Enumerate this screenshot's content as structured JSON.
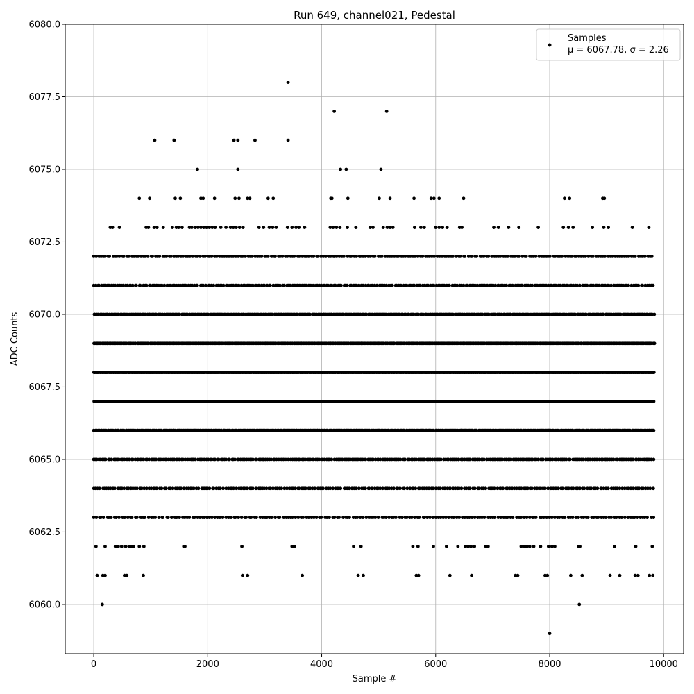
{
  "chart_data": {
    "type": "scatter",
    "title": "Run 649, channel021, Pedestal",
    "xlabel": "Sample #",
    "ylabel": "ADC Counts",
    "xlim": [
      -500,
      10350
    ],
    "ylim": [
      6058.3,
      6080
    ],
    "xticks": [
      0,
      2000,
      4000,
      6000,
      8000,
      10000
    ],
    "xtick_labels": [
      "0",
      "2000",
      "4000",
      "6000",
      "8000",
      "10000"
    ],
    "yticks": [
      6060.0,
      6062.5,
      6065.0,
      6067.5,
      6070.0,
      6072.5,
      6075.0,
      6077.5,
      6080.0
    ],
    "ytick_labels": [
      "6060.0",
      "6062.5",
      "6065.0",
      "6067.5",
      "6070.0",
      "6072.5",
      "6075.0",
      "6077.5",
      "6080.0"
    ],
    "grid": true,
    "legend_position": "top-right",
    "marker_color": "#000000",
    "series": [
      {
        "name": "Samples",
        "stats_label": "μ = 6067.78, σ = 2.26",
        "mean": 6067.78,
        "std": 2.26,
        "x_range": [
          0,
          9840
        ],
        "dense_levels": [
          6063,
          6064,
          6065,
          6066,
          6067,
          6068,
          6069,
          6070,
          6071,
          6072
        ],
        "sparse_points": [
          {
            "x": 8000,
            "y": 6059
          },
          {
            "x": 150,
            "y": 6060
          },
          {
            "x": 8520,
            "y": 6060
          },
          {
            "x": 60,
            "y": 6061
          },
          {
            "x": 160,
            "y": 6061
          },
          {
            "x": 200,
            "y": 6061
          },
          {
            "x": 540,
            "y": 6061
          },
          {
            "x": 580,
            "y": 6061
          },
          {
            "x": 870,
            "y": 6061
          },
          {
            "x": 2610,
            "y": 6061
          },
          {
            "x": 2700,
            "y": 6061
          },
          {
            "x": 3660,
            "y": 6061
          },
          {
            "x": 4640,
            "y": 6061
          },
          {
            "x": 4730,
            "y": 6061
          },
          {
            "x": 5660,
            "y": 6061
          },
          {
            "x": 5700,
            "y": 6061
          },
          {
            "x": 6250,
            "y": 6061
          },
          {
            "x": 6630,
            "y": 6061
          },
          {
            "x": 7400,
            "y": 6061
          },
          {
            "x": 7440,
            "y": 6061
          },
          {
            "x": 7920,
            "y": 6061
          },
          {
            "x": 7960,
            "y": 6061
          },
          {
            "x": 8370,
            "y": 6061
          },
          {
            "x": 8570,
            "y": 6061
          },
          {
            "x": 9060,
            "y": 6061
          },
          {
            "x": 9230,
            "y": 6061
          },
          {
            "x": 9500,
            "y": 6061
          },
          {
            "x": 9550,
            "y": 6061
          },
          {
            "x": 9750,
            "y": 6061
          },
          {
            "x": 9810,
            "y": 6061
          },
          {
            "x": 40,
            "y": 6062
          },
          {
            "x": 200,
            "y": 6062
          },
          {
            "x": 380,
            "y": 6062
          },
          {
            "x": 430,
            "y": 6062
          },
          {
            "x": 490,
            "y": 6062
          },
          {
            "x": 560,
            "y": 6062
          },
          {
            "x": 620,
            "y": 6062
          },
          {
            "x": 660,
            "y": 6062
          },
          {
            "x": 700,
            "y": 6062
          },
          {
            "x": 800,
            "y": 6062
          },
          {
            "x": 880,
            "y": 6062
          },
          {
            "x": 1580,
            "y": 6062
          },
          {
            "x": 1600,
            "y": 6062
          },
          {
            "x": 2600,
            "y": 6062
          },
          {
            "x": 3480,
            "y": 6062
          },
          {
            "x": 3520,
            "y": 6062
          },
          {
            "x": 4560,
            "y": 6062
          },
          {
            "x": 4690,
            "y": 6062
          },
          {
            "x": 5600,
            "y": 6062
          },
          {
            "x": 5690,
            "y": 6062
          },
          {
            "x": 5960,
            "y": 6062
          },
          {
            "x": 6190,
            "y": 6062
          },
          {
            "x": 6390,
            "y": 6062
          },
          {
            "x": 6520,
            "y": 6062
          },
          {
            "x": 6570,
            "y": 6062
          },
          {
            "x": 6620,
            "y": 6062
          },
          {
            "x": 6680,
            "y": 6062
          },
          {
            "x": 6880,
            "y": 6062
          },
          {
            "x": 6920,
            "y": 6062
          },
          {
            "x": 7500,
            "y": 6062
          },
          {
            "x": 7560,
            "y": 6062
          },
          {
            "x": 7600,
            "y": 6062
          },
          {
            "x": 7650,
            "y": 6062
          },
          {
            "x": 7720,
            "y": 6062
          },
          {
            "x": 7840,
            "y": 6062
          },
          {
            "x": 7980,
            "y": 6062
          },
          {
            "x": 8040,
            "y": 6062
          },
          {
            "x": 8090,
            "y": 6062
          },
          {
            "x": 8510,
            "y": 6062
          },
          {
            "x": 8530,
            "y": 6062
          },
          {
            "x": 9140,
            "y": 6062
          },
          {
            "x": 9510,
            "y": 6062
          },
          {
            "x": 9800,
            "y": 6062
          },
          {
            "x": 290,
            "y": 6073
          },
          {
            "x": 330,
            "y": 6073
          },
          {
            "x": 450,
            "y": 6073
          },
          {
            "x": 920,
            "y": 6073
          },
          {
            "x": 960,
            "y": 6073
          },
          {
            "x": 1060,
            "y": 6073
          },
          {
            "x": 1110,
            "y": 6073
          },
          {
            "x": 1220,
            "y": 6073
          },
          {
            "x": 1380,
            "y": 6073
          },
          {
            "x": 1450,
            "y": 6073
          },
          {
            "x": 1490,
            "y": 6073
          },
          {
            "x": 1550,
            "y": 6073
          },
          {
            "x": 1680,
            "y": 6073
          },
          {
            "x": 1720,
            "y": 6073
          },
          {
            "x": 1780,
            "y": 6073
          },
          {
            "x": 1830,
            "y": 6073
          },
          {
            "x": 1880,
            "y": 6073
          },
          {
            "x": 1930,
            "y": 6073
          },
          {
            "x": 1980,
            "y": 6073
          },
          {
            "x": 2030,
            "y": 6073
          },
          {
            "x": 2080,
            "y": 6073
          },
          {
            "x": 2130,
            "y": 6073
          },
          {
            "x": 2230,
            "y": 6073
          },
          {
            "x": 2320,
            "y": 6073
          },
          {
            "x": 2400,
            "y": 6073
          },
          {
            "x": 2450,
            "y": 6073
          },
          {
            "x": 2500,
            "y": 6073
          },
          {
            "x": 2560,
            "y": 6073
          },
          {
            "x": 2620,
            "y": 6073
          },
          {
            "x": 2900,
            "y": 6073
          },
          {
            "x": 2980,
            "y": 6073
          },
          {
            "x": 3080,
            "y": 6073
          },
          {
            "x": 3140,
            "y": 6073
          },
          {
            "x": 3200,
            "y": 6073
          },
          {
            "x": 3400,
            "y": 6073
          },
          {
            "x": 3480,
            "y": 6073
          },
          {
            "x": 3550,
            "y": 6073
          },
          {
            "x": 3600,
            "y": 6073
          },
          {
            "x": 3700,
            "y": 6073
          },
          {
            "x": 4150,
            "y": 6073
          },
          {
            "x": 4200,
            "y": 6073
          },
          {
            "x": 4260,
            "y": 6073
          },
          {
            "x": 4320,
            "y": 6073
          },
          {
            "x": 4450,
            "y": 6073
          },
          {
            "x": 4600,
            "y": 6073
          },
          {
            "x": 4850,
            "y": 6073
          },
          {
            "x": 4900,
            "y": 6073
          },
          {
            "x": 5080,
            "y": 6073
          },
          {
            "x": 5150,
            "y": 6073
          },
          {
            "x": 5200,
            "y": 6073
          },
          {
            "x": 5250,
            "y": 6073
          },
          {
            "x": 5630,
            "y": 6073
          },
          {
            "x": 5740,
            "y": 6073
          },
          {
            "x": 5800,
            "y": 6073
          },
          {
            "x": 6000,
            "y": 6073
          },
          {
            "x": 6060,
            "y": 6073
          },
          {
            "x": 6120,
            "y": 6073
          },
          {
            "x": 6200,
            "y": 6073
          },
          {
            "x": 6420,
            "y": 6073
          },
          {
            "x": 6460,
            "y": 6073
          },
          {
            "x": 7020,
            "y": 6073
          },
          {
            "x": 7100,
            "y": 6073
          },
          {
            "x": 7280,
            "y": 6073
          },
          {
            "x": 7460,
            "y": 6073
          },
          {
            "x": 7800,
            "y": 6073
          },
          {
            "x": 8240,
            "y": 6073
          },
          {
            "x": 8330,
            "y": 6073
          },
          {
            "x": 8410,
            "y": 6073
          },
          {
            "x": 8750,
            "y": 6073
          },
          {
            "x": 8950,
            "y": 6073
          },
          {
            "x": 9030,
            "y": 6073
          },
          {
            "x": 9450,
            "y": 6073
          },
          {
            "x": 9740,
            "y": 6073
          },
          {
            "x": 800,
            "y": 6074
          },
          {
            "x": 980,
            "y": 6074
          },
          {
            "x": 1430,
            "y": 6074
          },
          {
            "x": 1520,
            "y": 6074
          },
          {
            "x": 1880,
            "y": 6074
          },
          {
            "x": 1920,
            "y": 6074
          },
          {
            "x": 2120,
            "y": 6074
          },
          {
            "x": 2480,
            "y": 6074
          },
          {
            "x": 2550,
            "y": 6074
          },
          {
            "x": 2700,
            "y": 6074
          },
          {
            "x": 2740,
            "y": 6074
          },
          {
            "x": 3060,
            "y": 6074
          },
          {
            "x": 3150,
            "y": 6074
          },
          {
            "x": 4160,
            "y": 6074
          },
          {
            "x": 4180,
            "y": 6074
          },
          {
            "x": 4460,
            "y": 6074
          },
          {
            "x": 5010,
            "y": 6074
          },
          {
            "x": 5200,
            "y": 6074
          },
          {
            "x": 5620,
            "y": 6074
          },
          {
            "x": 5920,
            "y": 6074
          },
          {
            "x": 5970,
            "y": 6074
          },
          {
            "x": 6060,
            "y": 6074
          },
          {
            "x": 6490,
            "y": 6074
          },
          {
            "x": 8260,
            "y": 6074
          },
          {
            "x": 8350,
            "y": 6074
          },
          {
            "x": 8930,
            "y": 6074
          },
          {
            "x": 8960,
            "y": 6074
          },
          {
            "x": 1820,
            "y": 6075
          },
          {
            "x": 2530,
            "y": 6075
          },
          {
            "x": 4330,
            "y": 6075
          },
          {
            "x": 4430,
            "y": 6075
          },
          {
            "x": 5040,
            "y": 6075
          },
          {
            "x": 1070,
            "y": 6076
          },
          {
            "x": 1410,
            "y": 6076
          },
          {
            "x": 2460,
            "y": 6076
          },
          {
            "x": 2530,
            "y": 6076
          },
          {
            "x": 2830,
            "y": 6076
          },
          {
            "x": 3410,
            "y": 6076
          },
          {
            "x": 4220,
            "y": 6077
          },
          {
            "x": 5140,
            "y": 6077
          },
          {
            "x": 3410,
            "y": 6078
          }
        ]
      }
    ]
  }
}
